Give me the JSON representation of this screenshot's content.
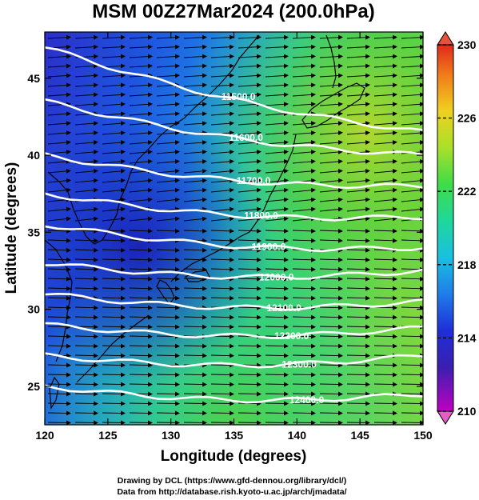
{
  "chart_data": {
    "type": "heatmap",
    "title": "MSM 00Z27Mar2024 (200.0hPa)",
    "xlabel": "Longitude (degrees)",
    "ylabel": "Latitude  (degrees)",
    "xlim": [
      120,
      150
    ],
    "ylim": [
      22.5,
      48
    ],
    "xticks": [
      "120",
      "125",
      "130",
      "135",
      "140",
      "145",
      "150"
    ],
    "yticks": [
      "25",
      "30",
      "35",
      "40",
      "45"
    ],
    "colorbar": {
      "min": 210,
      "max": 230,
      "ticks": [
        "230",
        "226",
        "222",
        "218",
        "214",
        "210"
      ]
    },
    "contours": [
      {
        "label": "11500.0",
        "lat_at_120": 47.0,
        "lat_at_150": 41.5
      },
      {
        "label": "11600.0",
        "lat_at_120": 43.5,
        "lat_at_150": 40.0
      },
      {
        "label": "11700.0",
        "lat_at_120": 40.0,
        "lat_at_150": 38.0
      },
      {
        "label": "11800.0",
        "lat_at_120": 37.5,
        "lat_at_150": 36.0
      },
      {
        "label": "11900.0",
        "lat_at_120": 35.5,
        "lat_at_150": 34.0
      },
      {
        "label": "12000.0",
        "lat_at_120": 33.0,
        "lat_at_150": 32.5
      },
      {
        "label": "12100.0",
        "lat_at_120": 31.0,
        "lat_at_150": 30.5
      },
      {
        "label": "12200.0",
        "lat_at_120": 29.0,
        "lat_at_150": 28.8
      },
      {
        "label": "12300.0",
        "lat_at_120": 27.0,
        "lat_at_150": 27.0
      },
      {
        "label": "12400.0",
        "lat_at_120": 25.0,
        "lat_at_150": 24.5
      }
    ]
  },
  "credits": {
    "line1": "Drawing by DCL (https://www.gfd-dennou.org/library/dcl/)",
    "line2": "Data from http://database.rish.kyoto-u.ac.jp/arch/jmadata/"
  },
  "colors": {
    "contour": "#ffffff",
    "arrow": "#000000",
    "coast": "#000000"
  }
}
